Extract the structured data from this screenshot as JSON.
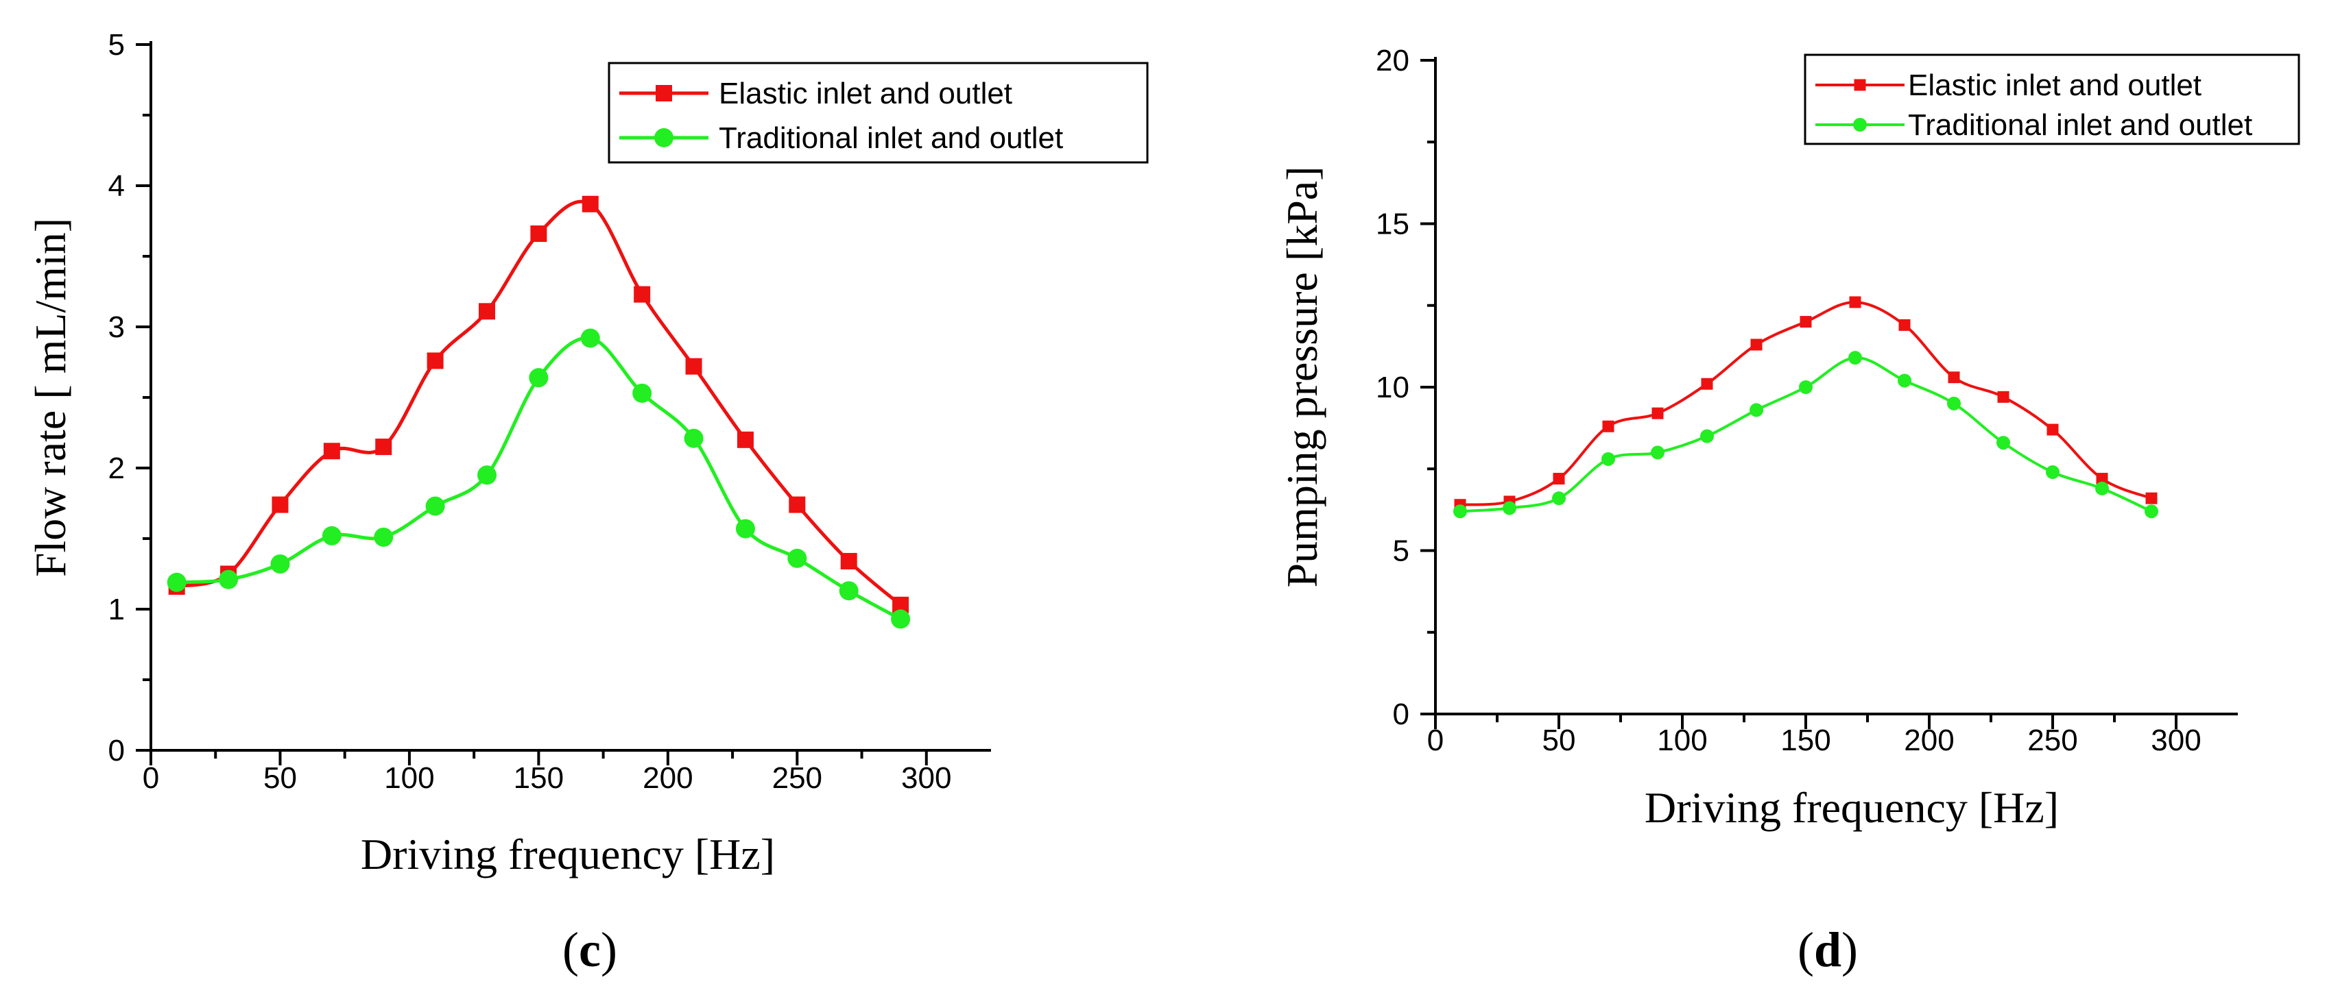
{
  "chart_data": [
    {
      "type": "line",
      "panel_label": {
        "open": "(",
        "letter": "c",
        "close": ")"
      },
      "title": "",
      "xlabel": "Driving frequency [Hz]",
      "ylabel": "Flow rate [ mL/min]",
      "xlim": [
        0,
        325
      ],
      "ylim": [
        0,
        5
      ],
      "xticks": [
        0,
        50,
        100,
        150,
        200,
        250,
        300
      ],
      "yticks": [
        0,
        1,
        2,
        3,
        4,
        5
      ],
      "xtick_labels": [
        "0",
        "50",
        "100",
        "150",
        "200",
        "250",
        "300"
      ],
      "ytick_labels": [
        "0",
        "1",
        "2",
        "3",
        "4",
        "5"
      ],
      "legend_position": "top-right",
      "x": [
        10,
        30,
        50,
        70,
        90,
        110,
        130,
        150,
        170,
        190,
        210,
        230,
        250,
        270,
        290
      ],
      "series": [
        {
          "name": "Elastic inlet and outlet",
          "color": "#ee1111",
          "marker": "square",
          "values": [
            1.16,
            1.25,
            1.74,
            2.12,
            2.15,
            2.76,
            3.11,
            3.66,
            3.87,
            3.23,
            2.72,
            2.2,
            1.74,
            1.34,
            1.03
          ]
        },
        {
          "name": "Traditional inlet and outlet",
          "color": "#22ee22",
          "marker": "circle",
          "values": [
            1.19,
            1.21,
            1.32,
            1.52,
            1.51,
            1.73,
            1.95,
            2.64,
            2.92,
            2.53,
            2.21,
            1.57,
            1.36,
            1.13,
            0.93
          ]
        }
      ]
    },
    {
      "type": "line",
      "panel_label": {
        "open": "(",
        "letter": "d",
        "close": ")"
      },
      "title": "",
      "xlabel": "Driving frequency [Hz]",
      "ylabel": "Pumping pressure [kPa]",
      "xlim": [
        0,
        325
      ],
      "ylim": [
        0,
        20
      ],
      "xticks": [
        0,
        50,
        100,
        150,
        200,
        250,
        300
      ],
      "yticks": [
        0,
        5,
        10,
        15,
        20
      ],
      "xtick_labels": [
        "0",
        "50",
        "100",
        "150",
        "200",
        "250",
        "300"
      ],
      "ytick_labels": [
        "0",
        "5",
        "10",
        "15",
        "20"
      ],
      "legend_position": "top-right",
      "x": [
        10,
        30,
        50,
        70,
        90,
        110,
        130,
        150,
        170,
        190,
        210,
        230,
        250,
        270,
        290
      ],
      "series": [
        {
          "name": "Elastic inlet and outlet",
          "color": "#ee1111",
          "marker": "square",
          "values": [
            6.4,
            6.5,
            7.2,
            8.8,
            9.2,
            10.1,
            11.3,
            12.0,
            12.6,
            11.9,
            10.3,
            9.7,
            8.7,
            7.2,
            6.6
          ]
        },
        {
          "name": "Traditional inlet and outlet",
          "color": "#22ee22",
          "marker": "circle",
          "values": [
            6.2,
            6.3,
            6.6,
            7.8,
            8.0,
            8.5,
            9.3,
            10.0,
            10.9,
            10.2,
            9.5,
            8.3,
            7.4,
            6.9,
            6.2
          ]
        }
      ]
    }
  ]
}
